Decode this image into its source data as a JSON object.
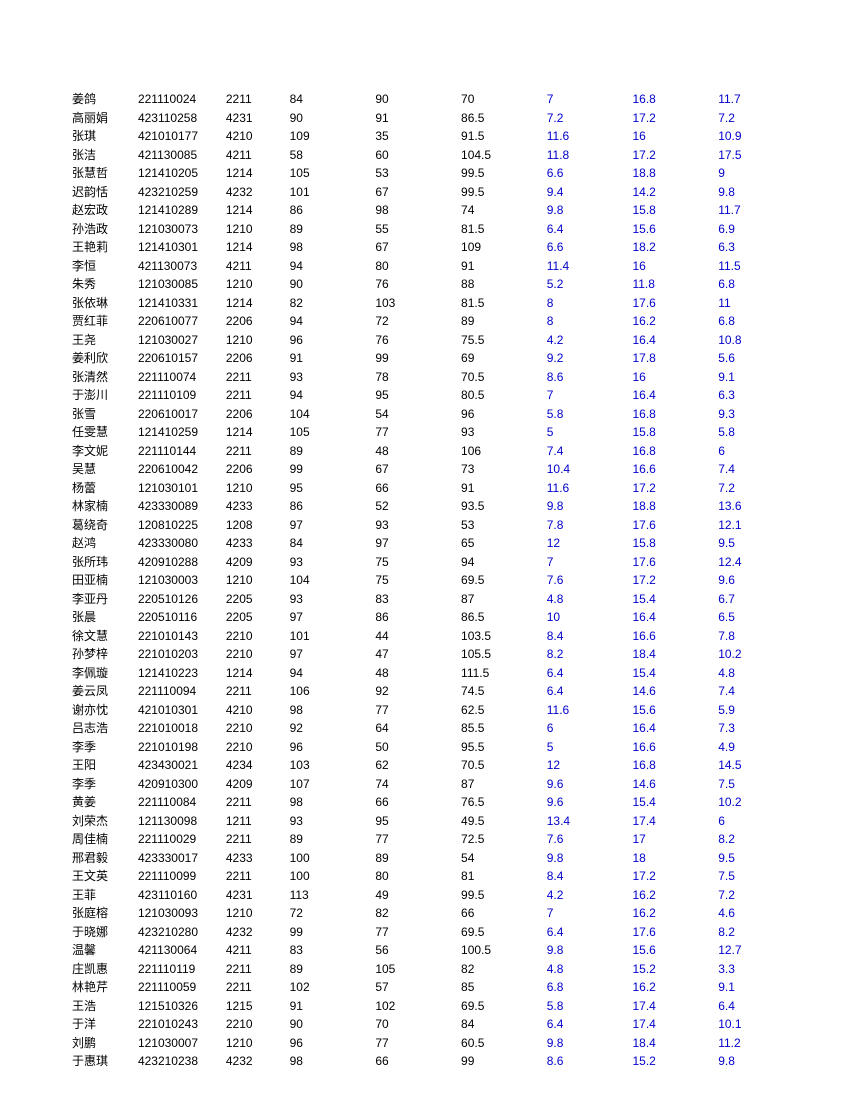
{
  "table": {
    "text_color_normal": "#000000",
    "text_color_blue": "#0000cc",
    "background_color": "#ffffff",
    "font_size": 12,
    "columns": [
      {
        "key": "name",
        "class": "c0"
      },
      {
        "key": "id",
        "class": "c1"
      },
      {
        "key": "code",
        "class": "c2"
      },
      {
        "key": "v1",
        "class": "c3"
      },
      {
        "key": "v2",
        "class": "c4"
      },
      {
        "key": "v3",
        "class": "c5"
      },
      {
        "key": "v4",
        "class": "c6"
      },
      {
        "key": "v5",
        "class": "c7"
      },
      {
        "key": "v6",
        "class": "c8"
      }
    ],
    "rows": [
      [
        "姜鸽",
        "221110024",
        "2211",
        "84",
        "90",
        "70",
        "7",
        "16.8",
        "11.7"
      ],
      [
        "高丽娟",
        "423110258",
        "4231",
        "90",
        "91",
        "86.5",
        "7.2",
        "17.2",
        "7.2"
      ],
      [
        "张琪",
        "421010177",
        "4210",
        "109",
        "35",
        "91.5",
        "11.6",
        "16",
        "10.9"
      ],
      [
        "张洁",
        "421130085",
        "4211",
        "58",
        "60",
        "104.5",
        "11.8",
        "17.2",
        "17.5"
      ],
      [
        "张慧哲",
        "121410205",
        "1214",
        "105",
        "53",
        "99.5",
        "6.6",
        "18.8",
        "9"
      ],
      [
        "迟韵恬",
        "423210259",
        "4232",
        "101",
        "67",
        "99.5",
        "9.4",
        "14.2",
        "9.8"
      ],
      [
        "赵宏政",
        "121410289",
        "1214",
        "86",
        "98",
        "74",
        "9.8",
        "15.8",
        "11.7"
      ],
      [
        "孙浩政",
        "121030073",
        "1210",
        "89",
        "55",
        "81.5",
        "6.4",
        "15.6",
        "6.9"
      ],
      [
        "王艳莉",
        "121410301",
        "1214",
        "98",
        "67",
        "109",
        "6.6",
        "18.2",
        "6.3"
      ],
      [
        "李恒",
        "421130073",
        "4211",
        "94",
        "80",
        "91",
        "11.4",
        "16",
        "11.5"
      ],
      [
        "朱秀",
        "121030085",
        "1210",
        "90",
        "76",
        "88",
        "5.2",
        "11.8",
        "6.8"
      ],
      [
        "张依琳",
        "121410331",
        "1214",
        "82",
        "103",
        "81.5",
        "8",
        "17.6",
        "11"
      ],
      [
        "贾红菲",
        "220610077",
        "2206",
        "94",
        "72",
        "89",
        "8",
        "16.2",
        "6.8"
      ],
      [
        "王尧",
        "121030027",
        "1210",
        "96",
        "76",
        "75.5",
        "4.2",
        "16.4",
        "10.8"
      ],
      [
        "姜利欣",
        "220610157",
        "2206",
        "91",
        "99",
        "69",
        "9.2",
        "17.8",
        "5.6"
      ],
      [
        "张清然",
        "221110074",
        "2211",
        "93",
        "78",
        "70.5",
        "8.6",
        "16",
        "9.1"
      ],
      [
        "于澎川",
        "221110109",
        "2211",
        "94",
        "95",
        "80.5",
        "7",
        "16.4",
        "6.3"
      ],
      [
        "张雪",
        "220610017",
        "2206",
        "104",
        "54",
        "96",
        "5.8",
        "16.8",
        "9.3"
      ],
      [
        "任雯慧",
        "121410259",
        "1214",
        "105",
        "77",
        "93",
        "5",
        "15.8",
        "5.8"
      ],
      [
        "李文妮",
        "221110144",
        "2211",
        "89",
        "48",
        "106",
        "7.4",
        "16.8",
        "6"
      ],
      [
        "吴慧",
        "220610042",
        "2206",
        "99",
        "67",
        "73",
        "10.4",
        "16.6",
        "7.4"
      ],
      [
        "杨蕾",
        "121030101",
        "1210",
        "95",
        "66",
        "91",
        "11.6",
        "17.2",
        "7.2"
      ],
      [
        "林家楠",
        "423330089",
        "4233",
        "86",
        "52",
        "93.5",
        "9.8",
        "18.8",
        "13.6"
      ],
      [
        "葛绕奇",
        "120810225",
        "1208",
        "97",
        "93",
        "53",
        "7.8",
        "17.6",
        "12.1"
      ],
      [
        "赵鸿",
        "423330080",
        "4233",
        "84",
        "97",
        "65",
        "12",
        "15.8",
        "9.5"
      ],
      [
        "张所玮",
        "420910288",
        "4209",
        "93",
        "75",
        "94",
        "7",
        "17.6",
        "12.4"
      ],
      [
        "田亚楠",
        "121030003",
        "1210",
        "104",
        "75",
        "69.5",
        "7.6",
        "17.2",
        "9.6"
      ],
      [
        "李亚丹",
        "220510126",
        "2205",
        "93",
        "83",
        "87",
        "4.8",
        "15.4",
        "6.7"
      ],
      [
        "张晨",
        "220510116",
        "2205",
        "97",
        "86",
        "86.5",
        "10",
        "16.4",
        "6.5"
      ],
      [
        "徐文慧",
        "221010143",
        "2210",
        "101",
        "44",
        "103.5",
        "8.4",
        "16.6",
        "7.8"
      ],
      [
        "孙梦梓",
        "221010203",
        "2210",
        "97",
        "47",
        "105.5",
        "8.2",
        "18.4",
        "10.2"
      ],
      [
        "李佩璇",
        "121410223",
        "1214",
        "94",
        "48",
        "111.5",
        "6.4",
        "15.4",
        "4.8"
      ],
      [
        "姜云凤",
        "221110094",
        "2211",
        "106",
        "92",
        "74.5",
        "6.4",
        "14.6",
        "7.4"
      ],
      [
        "谢亦忱",
        "421010301",
        "4210",
        "98",
        "77",
        "62.5",
        "11.6",
        "15.6",
        "5.9"
      ],
      [
        "吕志浩",
        "221010018",
        "2210",
        "92",
        "64",
        "85.5",
        "6",
        "16.4",
        "7.3"
      ],
      [
        "李季",
        "221010198",
        "2210",
        "96",
        "50",
        "95.5",
        "5",
        "16.6",
        "4.9"
      ],
      [
        "王阳",
        "423430021",
        "4234",
        "103",
        "62",
        "70.5",
        "12",
        "16.8",
        "14.5"
      ],
      [
        "李季",
        "420910300",
        "4209",
        "107",
        "74",
        "87",
        "9.6",
        "14.6",
        "7.5"
      ],
      [
        "黄姜",
        "221110084",
        "2211",
        "98",
        "66",
        "76.5",
        "9.6",
        "15.4",
        "10.2"
      ],
      [
        "刘荣杰",
        "121130098",
        "1211",
        "93",
        "95",
        "49.5",
        "13.4",
        "17.4",
        "6"
      ],
      [
        "周佳楠",
        "221110029",
        "2211",
        "89",
        "77",
        "72.5",
        "7.6",
        "17",
        "8.2"
      ],
      [
        "邢君毅",
        "423330017",
        "4233",
        "100",
        "89",
        "54",
        "9.8",
        "18",
        "9.5"
      ],
      [
        "王文英",
        "221110099",
        "2211",
        "100",
        "80",
        "81",
        "8.4",
        "17.2",
        "7.5"
      ],
      [
        "王菲",
        "423110160",
        "4231",
        "113",
        "49",
        "99.5",
        "4.2",
        "16.2",
        "7.2"
      ],
      [
        "张庭榕",
        "121030093",
        "1210",
        "72",
        "82",
        "66",
        "7",
        "16.2",
        "4.6"
      ],
      [
        "于晓娜",
        "423210280",
        "4232",
        "99",
        "77",
        "69.5",
        "6.4",
        "17.6",
        "8.2"
      ],
      [
        "温馨",
        "421130064",
        "4211",
        "83",
        "56",
        "100.5",
        "9.8",
        "15.6",
        "12.7"
      ],
      [
        "庄凯惠",
        "221110119",
        "2211",
        "89",
        "105",
        "82",
        "4.8",
        "15.2",
        "3.3"
      ],
      [
        "林艳芹",
        "221110059",
        "2211",
        "102",
        "57",
        "85",
        "6.8",
        "16.2",
        "9.1"
      ],
      [
        "王浩",
        "121510326",
        "1215",
        "91",
        "102",
        "69.5",
        "5.8",
        "17.4",
        "6.4"
      ],
      [
        "于洋",
        "221010243",
        "2210",
        "90",
        "70",
        "84",
        "6.4",
        "17.4",
        "10.1"
      ],
      [
        "刘鹏",
        "121030007",
        "1210",
        "96",
        "77",
        "60.5",
        "9.8",
        "18.4",
        "11.2"
      ],
      [
        "于惠琪",
        "423210238",
        "4232",
        "98",
        "66",
        "99",
        "8.6",
        "15.2",
        "9.8"
      ]
    ]
  }
}
